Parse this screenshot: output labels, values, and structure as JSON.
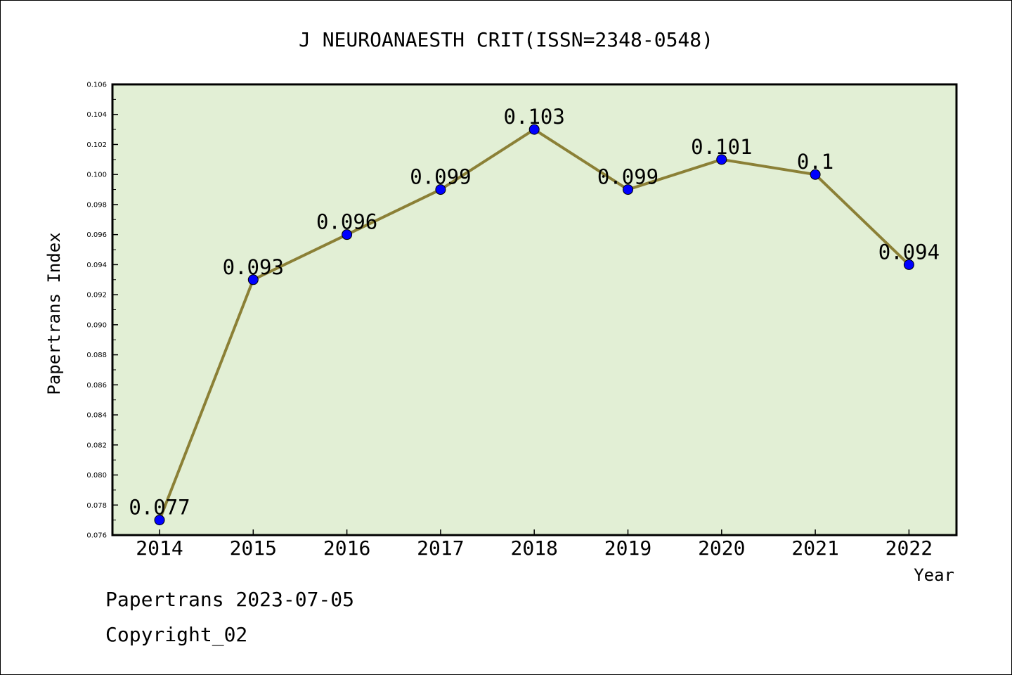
{
  "chart_data": {
    "type": "line",
    "title": "J NEUROANAESTH CRIT(ISSN=2348-0548)",
    "xlabel": "Year",
    "ylabel": "Papertrans Index",
    "x": [
      "2014",
      "2015",
      "2016",
      "2017",
      "2018",
      "2019",
      "2020",
      "2021",
      "2022"
    ],
    "series": [
      {
        "values": [
          0.077,
          0.093,
          0.096,
          0.099,
          0.103,
          0.099,
          0.101,
          0.1,
          0.094
        ],
        "labels": [
          "0.077",
          "0.093",
          "0.096",
          "0.099",
          "0.103",
          "0.099",
          "0.101",
          "0.1",
          "0.094"
        ]
      }
    ],
    "ylim": [
      0.076,
      0.106
    ],
    "ytick_labels": [
      "0.076",
      "0.078",
      "0.080",
      "0.082",
      "0.084",
      "0.086",
      "0.088",
      "0.090",
      "0.092",
      "0.094",
      "0.096",
      "0.098",
      "0.100",
      "0.102",
      "0.104",
      "0.106"
    ],
    "grid": false,
    "colors": {
      "plot_background": "#e2efd5",
      "line": "#8b8036",
      "marker": "#0000ff",
      "axis": "#000000"
    }
  },
  "footer": {
    "line1": "Papertrans 2023-07-05",
    "line2": "Copyright_02"
  }
}
